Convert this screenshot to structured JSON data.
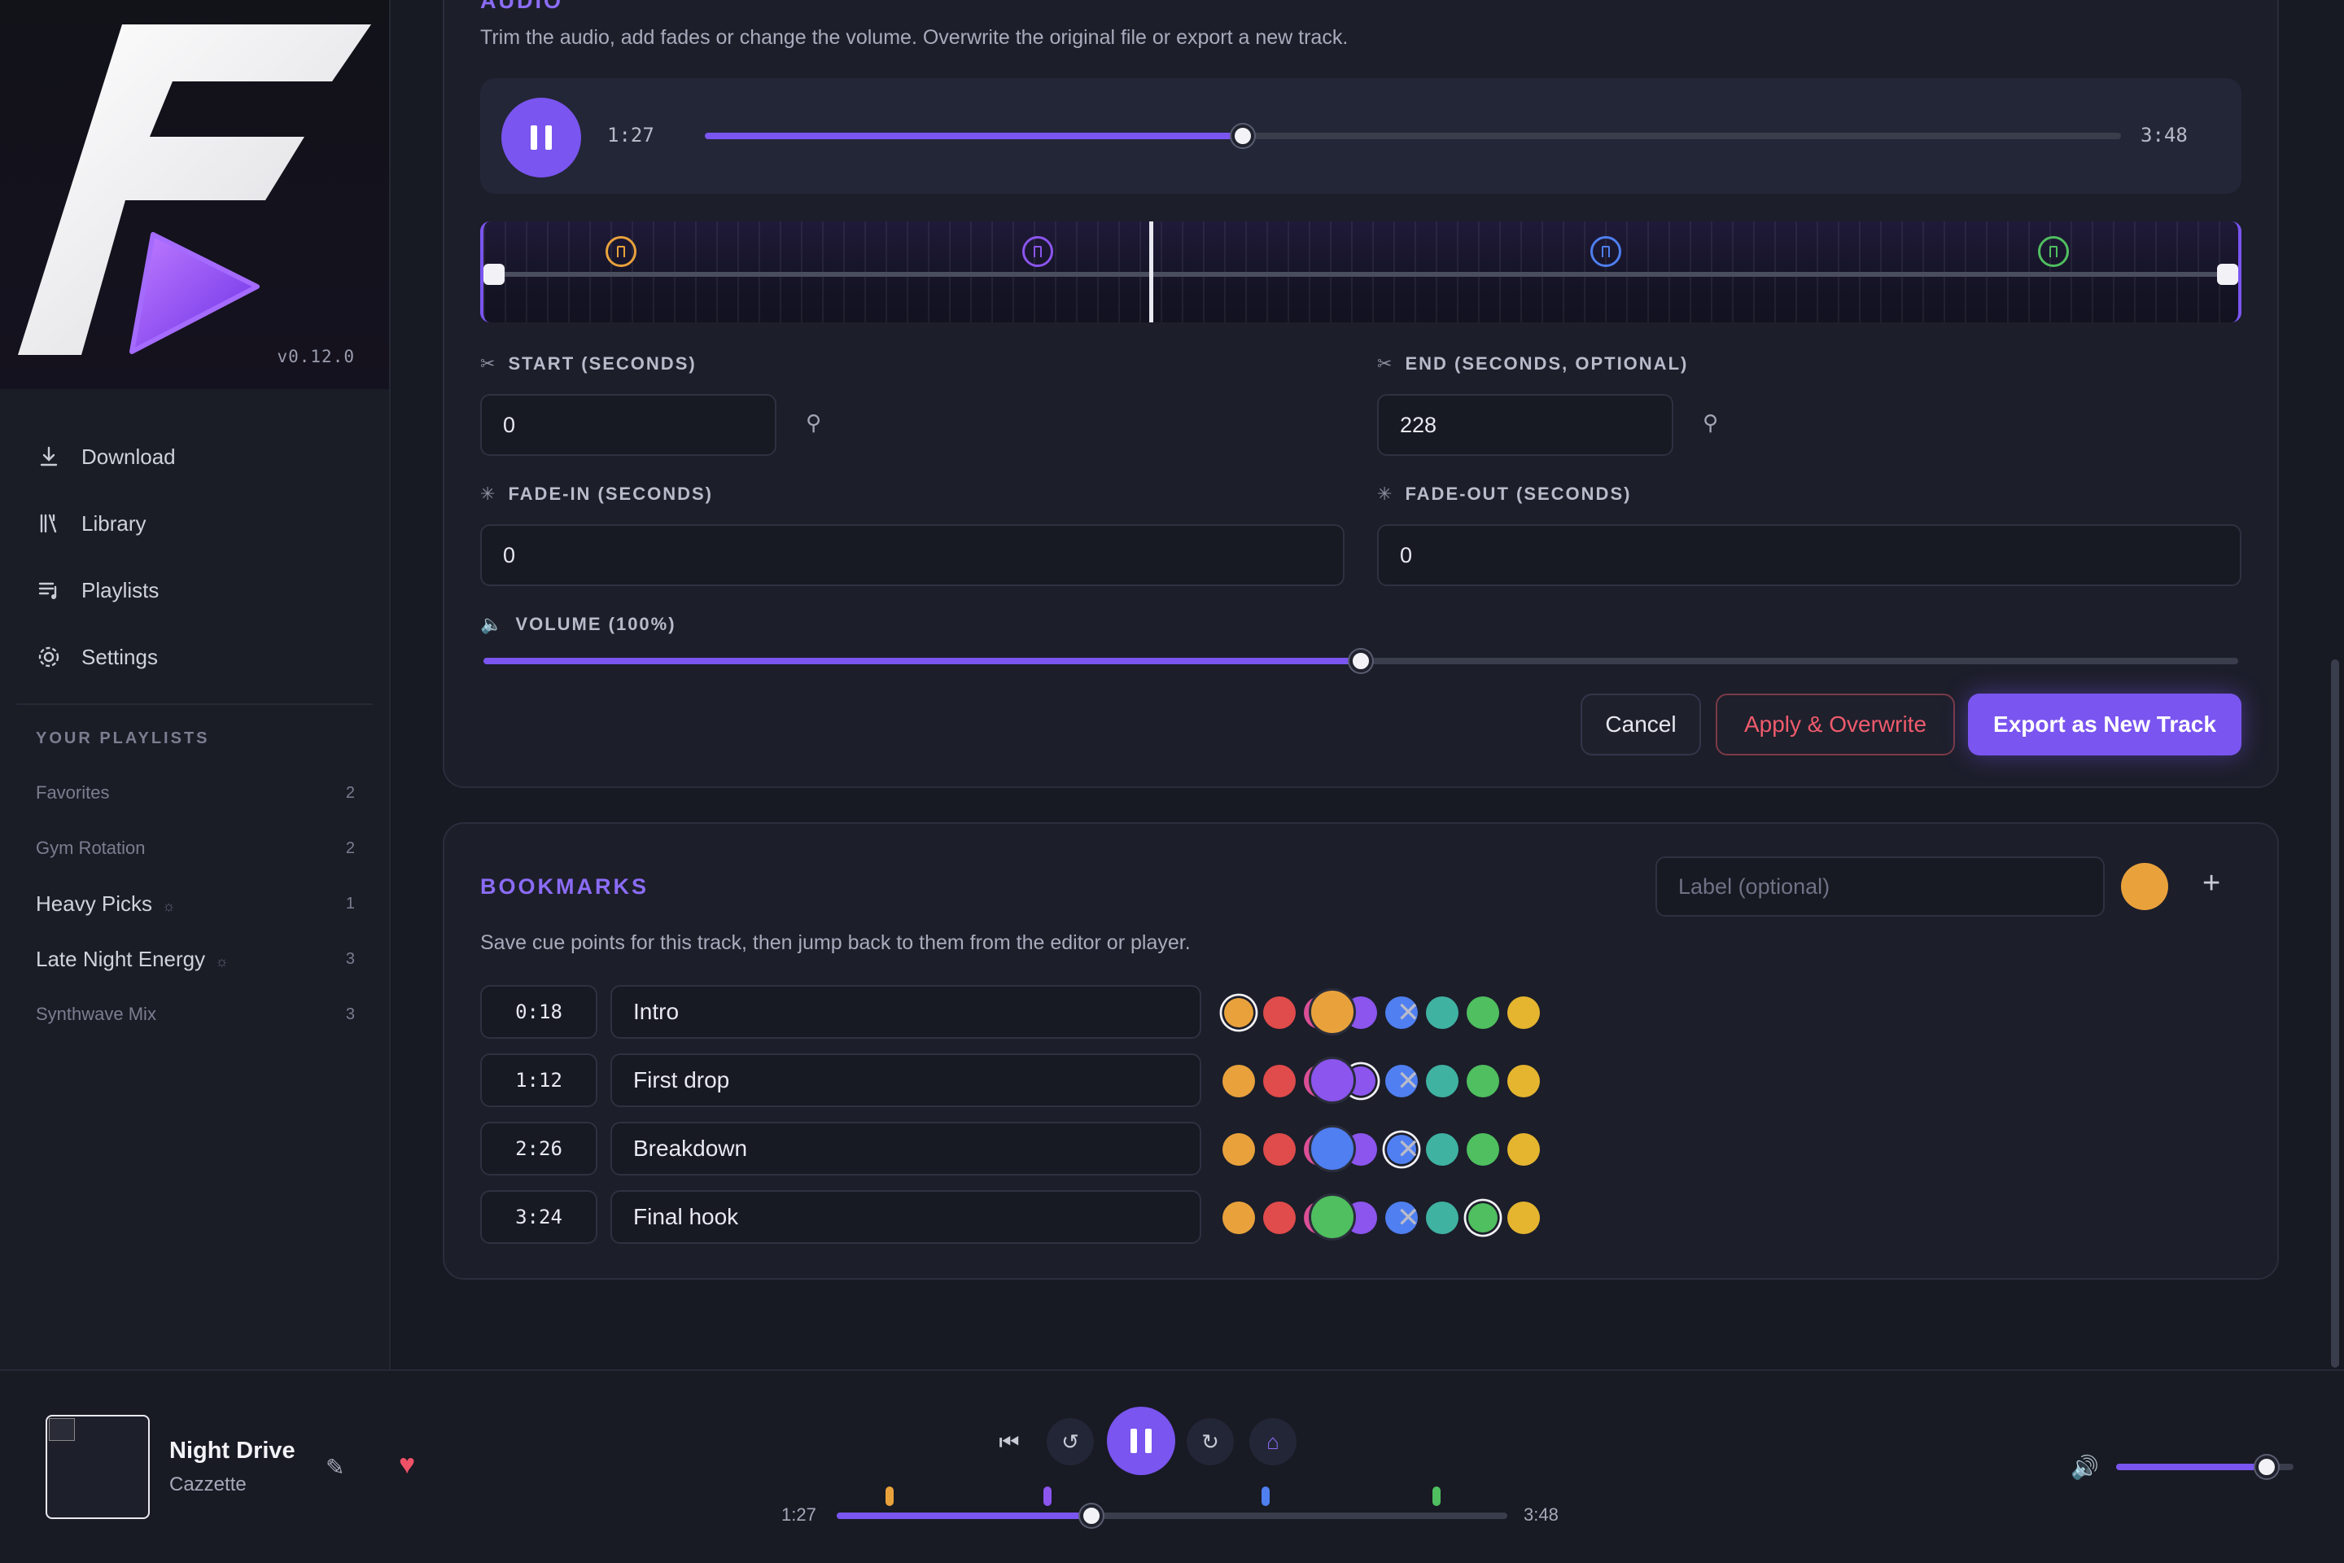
{
  "app": {
    "version": "v0.12.0"
  },
  "sidebar": {
    "nav": [
      {
        "label": "Download",
        "icon": "download-icon"
      },
      {
        "label": "Library",
        "icon": "library-icon"
      },
      {
        "label": "Playlists",
        "icon": "playlists-icon"
      },
      {
        "label": "Settings",
        "icon": "gear-icon"
      }
    ],
    "playlists_heading": "YOUR PLAYLISTS",
    "playlists": [
      {
        "name": "Favorites",
        "count": "2"
      },
      {
        "name": "Gym Rotation",
        "count": "2"
      },
      {
        "name": "Heavy Picks",
        "count": "1"
      },
      {
        "name": "Late Night Energy",
        "count": "3"
      },
      {
        "name": "Synthwave Mix",
        "count": "3"
      }
    ]
  },
  "audio": {
    "section_title": "AUDIO",
    "description": "Trim the audio, add fades or change the volume. Overwrite the original file or export a new track.",
    "current_time": "1:27",
    "duration": "3:48",
    "progress": 0.38,
    "start_label": "START (SECONDS)",
    "start_value": "0",
    "end_label": "END (SECONDS, OPTIONAL)",
    "end_value": "228",
    "fade_in_label": "FADE-IN (SECONDS)",
    "fade_in_value": "0",
    "fade_out_label": "FADE-OUT (SECONDS)",
    "fade_out_value": "0",
    "volume_label": "VOLUME (100%)",
    "volume": 0.5,
    "cancel_label": "Cancel",
    "overwrite_label": "Apply & Overwrite",
    "export_label": "Export as New Track"
  },
  "bookmarks": {
    "section_title": "BOOKMARKS",
    "label_placeholder": "Label (optional)",
    "description": "Save cue points for this track, then jump back to them from the editor or player.",
    "palette": [
      "#e9a23b",
      "#e04b4b",
      "#db4f96",
      "#8b55ee",
      "#4f7ff0",
      "#3fb2a2",
      "#4fbf5f",
      "#e5b52f"
    ],
    "new_color": "#e9a23b",
    "items": [
      {
        "time": "0:18",
        "label": "Intro",
        "color": "#e9a23b",
        "selected": 0
      },
      {
        "time": "1:12",
        "label": "First drop",
        "color": "#8b55ee",
        "selected": 3
      },
      {
        "time": "2:26",
        "label": "Breakdown",
        "color": "#4f7ff0",
        "selected": 4
      },
      {
        "time": "3:24",
        "label": "Final hook",
        "color": "#4fbf5f",
        "selected": 6
      }
    ]
  },
  "player": {
    "title": "Night Drive",
    "artist": "Cazzette",
    "current_time": "1:27",
    "duration": "3:48",
    "progress": 0.38,
    "volume": 0.85
  }
}
